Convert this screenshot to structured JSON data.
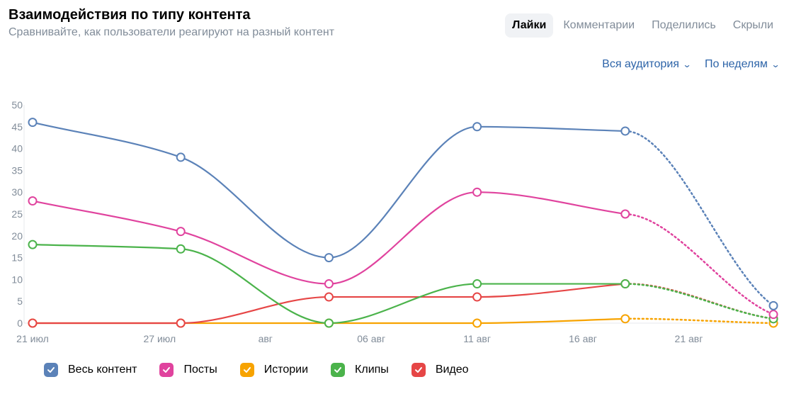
{
  "header": {
    "title": "Взаимодействия по типу контента",
    "subtitle": "Сравнивайте, как пользователи реагируют на разный контент"
  },
  "tabs": [
    {
      "label": "Лайки",
      "active": true
    },
    {
      "label": "Комментарии",
      "active": false
    },
    {
      "label": "Поделились",
      "active": false
    },
    {
      "label": "Скрыли",
      "active": false
    }
  ],
  "filters": {
    "audience": "Вся аудитория",
    "period": "По неделям"
  },
  "chart_data": {
    "type": "line",
    "ylim": [
      0,
      50
    ],
    "yticks": [
      0,
      5,
      10,
      15,
      20,
      25,
      30,
      35,
      40,
      45,
      50
    ],
    "x_dates": [
      "2024-07-21",
      "2024-07-28",
      "2024-08-04",
      "2024-08-11",
      "2024-08-18",
      "2024-08-25"
    ],
    "x_tick_labels": [
      {
        "date": "2024-07-21",
        "label": "21 июл"
      },
      {
        "date": "2024-07-27",
        "label": "27 июл"
      },
      {
        "date": "2024-08-01",
        "label": "авг"
      },
      {
        "date": "2024-08-06",
        "label": "06 авг"
      },
      {
        "date": "2024-08-11",
        "label": "11 авг"
      },
      {
        "date": "2024-08-16",
        "label": "16 авг"
      },
      {
        "date": "2024-08-21",
        "label": "21 авг"
      }
    ],
    "last_point_partial": true,
    "grid": false,
    "legend_position": "bottom-left",
    "series": [
      {
        "name": "Весь контент",
        "color": "#5b82b8",
        "values": [
          46,
          38,
          15,
          45,
          44,
          4
        ]
      },
      {
        "name": "Посты",
        "color": "#e0439e",
        "values": [
          28,
          21,
          9,
          30,
          25,
          2
        ]
      },
      {
        "name": "Истории",
        "color": "#f7a300",
        "values": [
          0,
          0,
          0,
          0,
          1,
          0
        ]
      },
      {
        "name": "Клипы",
        "color": "#4bb34b",
        "values": [
          18,
          17,
          0,
          9,
          9,
          1
        ]
      },
      {
        "name": "Видео",
        "color": "#e64646",
        "values": [
          0,
          0,
          6,
          6,
          9,
          1
        ]
      }
    ]
  }
}
